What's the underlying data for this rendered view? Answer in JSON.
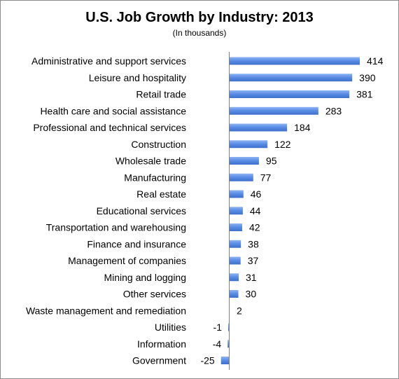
{
  "chart_data": {
    "type": "bar",
    "orientation": "horizontal",
    "title": "U.S. Job Growth by Industry: 2013",
    "subtitle": "(In thousands)",
    "categories": [
      "Administrative and support services",
      "Leisure and hospitality",
      "Retail trade",
      "Health care and social assistance",
      "Professional and technical services",
      "Construction",
      "Wholesale trade",
      "Manufacturing",
      "Real estate",
      "Educational services",
      "Transportation and warehousing",
      "Finance and insurance",
      "Management of companies",
      "Mining and logging",
      "Other services",
      "Waste management and remediation",
      "Utilities",
      "Information",
      "Government"
    ],
    "values": [
      414,
      390,
      381,
      283,
      184,
      122,
      95,
      77,
      46,
      44,
      42,
      38,
      37,
      31,
      30,
      2,
      -1,
      -4,
      -25
    ],
    "bar_color": "#5b8ee6",
    "grid": false,
    "legend": "none"
  }
}
